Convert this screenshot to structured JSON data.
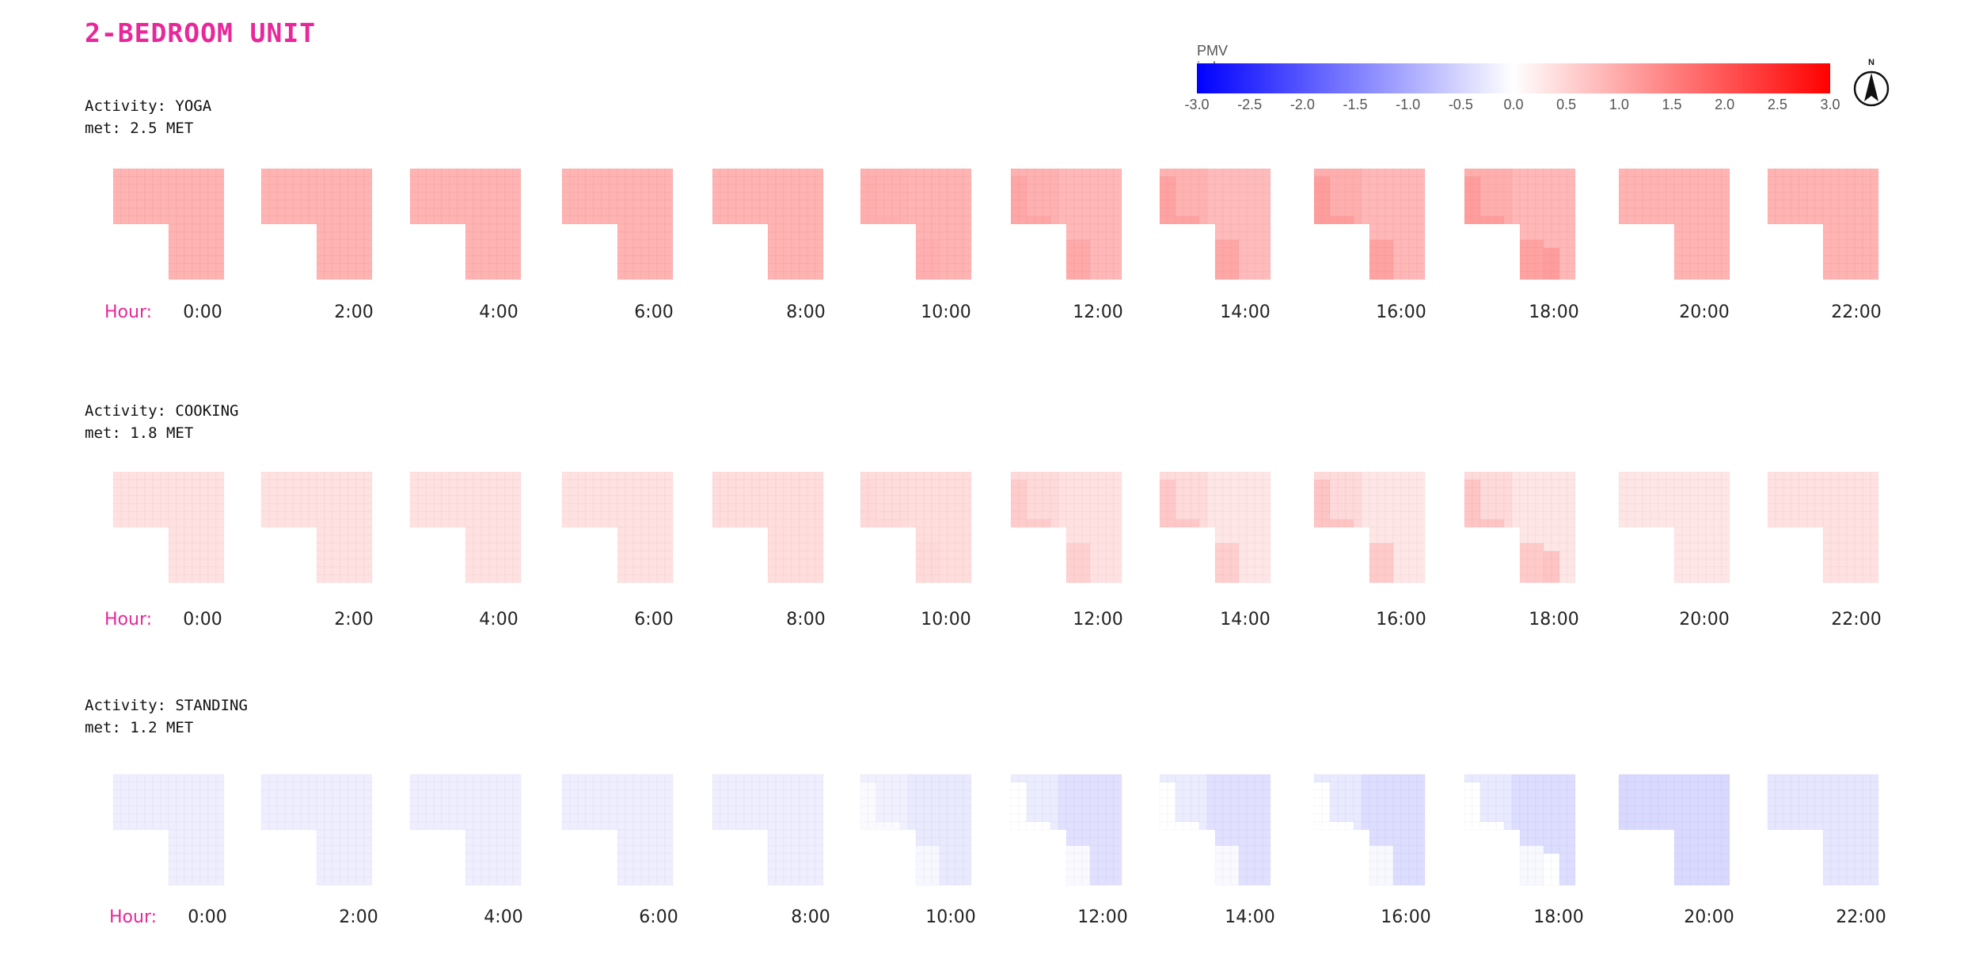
{
  "title": "2-BEDROOM UNIT",
  "legend": {
    "title": "PMV index",
    "ticks": [
      "-3.0",
      "-2.5",
      "-2.0",
      "-1.5",
      "-1.0",
      "-0.5",
      "0.0",
      "0.5",
      "1.0",
      "1.5",
      "2.0",
      "2.5",
      "3.0"
    ],
    "min": -3.0,
    "max": 3.0
  },
  "compass": {
    "label": "N",
    "icon": "north-arrow-icon"
  },
  "hour_label": "Hour:",
  "hours": [
    "0:00",
    "2:00",
    "4:00",
    "6:00",
    "8:00",
    "10:00",
    "12:00",
    "14:00",
    "16:00",
    "18:00",
    "20:00",
    "22:00"
  ],
  "activities": [
    {
      "activity_line": "Activity: YOGA",
      "met_line": "met: 2.5 MET",
      "base_pmv": [
        0.9,
        0.9,
        0.9,
        0.9,
        0.9,
        0.9,
        0.85,
        0.8,
        0.85,
        0.85,
        0.9,
        0.9
      ],
      "hot_pmv": [
        0.9,
        0.9,
        0.9,
        0.9,
        0.9,
        0.95,
        1.05,
        1.1,
        1.15,
        1.15,
        0.9,
        0.9
      ]
    },
    {
      "activity_line": "Activity: COOKING",
      "met_line": "met: 1.8 MET",
      "base_pmv": [
        0.35,
        0.35,
        0.35,
        0.35,
        0.4,
        0.4,
        0.35,
        0.3,
        0.3,
        0.3,
        0.3,
        0.35
      ],
      "hot_pmv": [
        0.35,
        0.35,
        0.35,
        0.35,
        0.4,
        0.45,
        0.6,
        0.65,
        0.7,
        0.7,
        0.3,
        0.35
      ]
    },
    {
      "activity_line": "Activity: STANDING",
      "met_line": "met: 1.2 MET",
      "base_pmv": [
        -0.2,
        -0.2,
        -0.2,
        -0.2,
        -0.2,
        -0.25,
        -0.35,
        -0.35,
        -0.4,
        -0.4,
        -0.45,
        -0.3
      ],
      "hot_pmv": [
        -0.2,
        -0.2,
        -0.2,
        -0.2,
        -0.2,
        -0.05,
        0.0,
        0.0,
        0.0,
        0.0,
        -0.45,
        -0.3
      ]
    }
  ]
}
